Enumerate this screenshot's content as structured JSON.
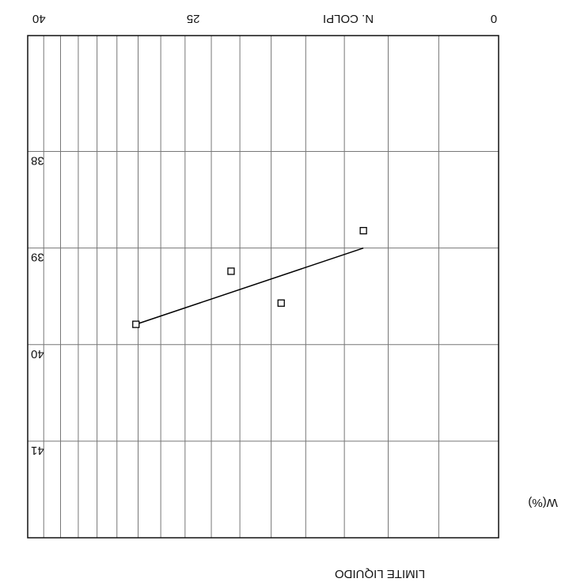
{
  "chart_data": {
    "type": "scatter",
    "title": "LIMITE LIQUIDO",
    "xlabel": "N. COLPI",
    "ylabel": "W(%)",
    "xscale": "log",
    "xlim": [
      10,
      42
    ],
    "xticks": [
      {
        "value": 10,
        "label": "0"
      },
      25,
      40
    ],
    "xgrid": [
      12,
      14,
      16,
      18,
      20,
      22,
      24,
      26,
      28,
      30,
      32,
      34,
      36,
      38,
      40
    ],
    "ylim": [
      36.8,
      42
    ],
    "yticks": [
      38,
      39,
      40,
      41
    ],
    "grid": true,
    "rotated": true,
    "color": "#000000",
    "x": [
      30.2,
      22.6,
      19.4,
      15.1
    ],
    "values": [
      39.79,
      39.24,
      39.57,
      38.82
    ],
    "trendline": {
      "x": [
        30.2,
        15.1
      ],
      "y": [
        39.79,
        39.0
      ]
    }
  }
}
